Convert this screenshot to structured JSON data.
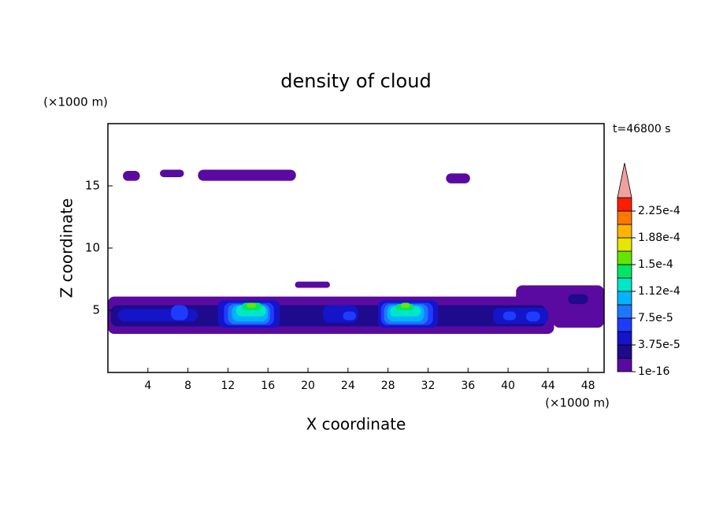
{
  "chart_data": {
    "type": "contour",
    "title": "density of cloud",
    "x_label": "X coordinate",
    "y_label": "Z coordinate",
    "x_unit": "(×1000 m)",
    "y_unit": "(×1000 m)",
    "time_label": "t=46800 s",
    "xlim": [
      0,
      49.6
    ],
    "xticks": [
      4,
      8,
      12,
      16,
      20,
      24,
      28,
      32,
      36,
      40,
      44,
      48
    ],
    "ylim": [
      0,
      20
    ],
    "yticks": [
      5,
      10,
      15
    ],
    "colorbar": {
      "levels": [
        1e-16,
        1.875e-05,
        3.75e-05,
        5.625e-05,
        7.5e-05,
        9.375e-05,
        0.0001125,
        0.00013125,
        0.00015,
        0.00016875,
        0.0001875,
        0.00020625,
        0.000225
      ],
      "colors": [
        "#5a0aa0",
        "#1e0a8c",
        "#1414c8",
        "#1e3cff",
        "#1e78ff",
        "#00b4ff",
        "#00e6c8",
        "#00e664",
        "#64e600",
        "#e6e600",
        "#ffb400",
        "#ff7800",
        "#ff1e00"
      ],
      "extend_color": "#f0a0a0",
      "ticks": [
        {
          "value": 1e-16,
          "label": "1e-16"
        },
        {
          "value": 3.75e-05,
          "label": "3.75e-5"
        },
        {
          "value": 7.5e-05,
          "label": "7.5e-5"
        },
        {
          "value": 0.0001125,
          "label": "1.12e-4"
        },
        {
          "value": 0.00015,
          "label": "1.5e-4"
        },
        {
          "value": 0.0001875,
          "label": "1.88e-4"
        },
        {
          "value": 0.000225,
          "label": "2.25e-4"
        }
      ]
    },
    "regions": [
      {
        "x": [
          1.5,
          3.2
        ],
        "z": [
          15.4,
          16.2
        ],
        "density": 1e-16
      },
      {
        "x": [
          5.2,
          7.6
        ],
        "z": [
          15.7,
          16.3
        ],
        "density": 1e-16
      },
      {
        "x": [
          9,
          18.8
        ],
        "z": [
          15.4,
          16.3
        ],
        "density": 1e-16
      },
      {
        "x": [
          33.8,
          36.2
        ],
        "z": [
          15.2,
          16.0
        ],
        "density": 1e-16
      },
      {
        "x": [
          18.7,
          22.2
        ],
        "z": [
          6.8,
          7.3
        ],
        "density": 1e-16
      },
      {
        "x": [
          0,
          44.6
        ],
        "z": [
          3.1,
          6.1
        ],
        "density": 1e-16
      },
      {
        "x": [
          40.8,
          49.6
        ],
        "z": [
          4.6,
          7.0
        ],
        "density": 1e-16
      },
      {
        "x": [
          44.5,
          49.6
        ],
        "z": [
          3.6,
          5.8
        ],
        "density": 1e-16
      },
      {
        "x": [
          0.3,
          43.8
        ],
        "z": [
          3.7,
          5.4
        ],
        "density": 1.875e-05
      },
      {
        "x": [
          1,
          9
        ],
        "z": [
          4.1,
          5.1
        ],
        "density": 3.75e-05
      },
      {
        "x": [
          6.3,
          8
        ],
        "z": [
          4.2,
          5.4
        ],
        "density": 5.625e-05
      },
      {
        "x": [
          11,
          17.2
        ],
        "z": [
          3.6,
          5.8
        ],
        "density": 3.75e-05
      },
      {
        "x": [
          11.6,
          16.6
        ],
        "z": [
          3.8,
          5.6
        ],
        "density": 5.625e-05
      },
      {
        "x": [
          12,
          16.2
        ],
        "z": [
          3.9,
          5.5
        ],
        "density": 7.5e-05
      },
      {
        "x": [
          12.4,
          16
        ],
        "z": [
          4.1,
          5.4
        ],
        "density": 9.375e-05
      },
      {
        "x": [
          12.8,
          15.8
        ],
        "z": [
          4.5,
          5.4
        ],
        "density": 0.0001125
      },
      {
        "x": [
          13.4,
          15.4
        ],
        "z": [
          5.0,
          5.6
        ],
        "density": 0.00013125
      },
      {
        "x": [
          13.9,
          14.8
        ],
        "z": [
          5.2,
          5.6
        ],
        "density": 0.00015
      },
      {
        "x": [
          21.5,
          25
        ],
        "z": [
          4.0,
          5.4
        ],
        "density": 3.75e-05
      },
      {
        "x": [
          23.5,
          24.8
        ],
        "z": [
          4.2,
          4.9
        ],
        "density": 5.625e-05
      },
      {
        "x": [
          27,
          33
        ],
        "z": [
          3.6,
          5.8
        ],
        "density": 3.75e-05
      },
      {
        "x": [
          27.3,
          32.5
        ],
        "z": [
          3.8,
          5.6
        ],
        "density": 5.625e-05
      },
      {
        "x": [
          27.6,
          32
        ],
        "z": [
          3.9,
          5.5
        ],
        "density": 7.5e-05
      },
      {
        "x": [
          27.9,
          31.6
        ],
        "z": [
          4.1,
          5.4
        ],
        "density": 9.375e-05
      },
      {
        "x": [
          28.2,
          31.3
        ],
        "z": [
          4.5,
          5.3
        ],
        "density": 0.0001125
      },
      {
        "x": [
          28.8,
          30.6
        ],
        "z": [
          5.0,
          5.5
        ],
        "density": 0.00013125
      },
      {
        "x": [
          29.3,
          30.2
        ],
        "z": [
          5.2,
          5.6
        ],
        "density": 0.00015
      },
      {
        "x": [
          38.5,
          44
        ],
        "z": [
          3.9,
          5.2
        ],
        "density": 3.75e-05
      },
      {
        "x": [
          39.5,
          40.8
        ],
        "z": [
          4.2,
          4.9
        ],
        "density": 5.625e-05
      },
      {
        "x": [
          41.8,
          43.2
        ],
        "z": [
          4.1,
          4.9
        ],
        "density": 5.625e-05
      },
      {
        "x": [
          46,
          48
        ],
        "z": [
          5.5,
          6.3
        ],
        "density": 1.875e-05
      }
    ]
  }
}
